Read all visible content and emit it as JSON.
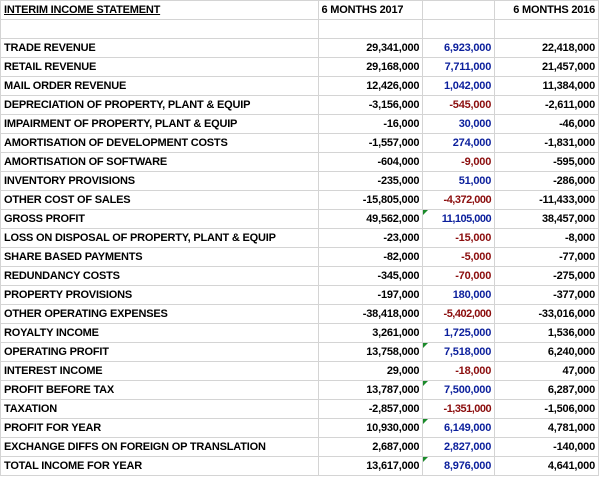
{
  "header": {
    "title": "INTERIM INCOME STATEMENT",
    "col_2017": "6 MONTHS 2017",
    "col_2016": "6 MONTHS 2016"
  },
  "rows": [
    {
      "label": "TRADE REVENUE",
      "v2017": "29,341,000",
      "change": "6,923,000",
      "change_sign": "pos",
      "v2016": "22,418,000"
    },
    {
      "label": "RETAIL REVENUE",
      "v2017": "29,168,000",
      "change": "7,711,000",
      "change_sign": "pos",
      "v2016": "21,457,000"
    },
    {
      "label": "MAIL ORDER REVENUE",
      "v2017": "12,426,000",
      "change": "1,042,000",
      "change_sign": "pos",
      "v2016": "11,384,000"
    },
    {
      "label": "DEPRECIATION OF PROPERTY, PLANT & EQUIP",
      "v2017": "-3,156,000",
      "change": "-545,000",
      "change_sign": "neg",
      "v2016": "-2,611,000"
    },
    {
      "label": "IMPAIRMENT OF PROPERTY, PLANT & EQUIP",
      "v2017": "-16,000",
      "change": "30,000",
      "change_sign": "pos",
      "v2016": "-46,000"
    },
    {
      "label": "AMORTISATION OF DEVELOPMENT COSTS",
      "v2017": "-1,557,000",
      "change": "274,000",
      "change_sign": "pos",
      "v2016": "-1,831,000"
    },
    {
      "label": "AMORTISATION OF SOFTWARE",
      "v2017": "-604,000",
      "change": "-9,000",
      "change_sign": "neg",
      "v2016": "-595,000"
    },
    {
      "label": "INVENTORY PROVISIONS",
      "v2017": "-235,000",
      "change": "51,000",
      "change_sign": "pos",
      "v2016": "-286,000"
    },
    {
      "label": "OTHER COST OF SALES",
      "v2017": "-15,805,000",
      "change": "-4,372,000",
      "change_sign": "neg",
      "v2016": "-11,433,000"
    },
    {
      "label": "GROSS PROFIT",
      "v2017": "49,562,000",
      "change": "11,105,000",
      "change_sign": "pos",
      "v2016": "38,457,000",
      "flag": true
    },
    {
      "label": "LOSS ON DISPOSAL OF PROPERTY, PLANT & EQUIP",
      "v2017": "-23,000",
      "change": "-15,000",
      "change_sign": "neg",
      "v2016": "-8,000"
    },
    {
      "label": "SHARE BASED PAYMENTS",
      "v2017": "-82,000",
      "change": "-5,000",
      "change_sign": "neg",
      "v2016": "-77,000"
    },
    {
      "label": "REDUNDANCY COSTS",
      "v2017": "-345,000",
      "change": "-70,000",
      "change_sign": "neg",
      "v2016": "-275,000"
    },
    {
      "label": "PROPERTY PROVISIONS",
      "v2017": "-197,000",
      "change": "180,000",
      "change_sign": "pos",
      "v2016": "-377,000"
    },
    {
      "label": "OTHER OPERATING EXPENSES",
      "v2017": "-38,418,000",
      "change": "-5,402,000",
      "change_sign": "neg",
      "v2016": "-33,016,000"
    },
    {
      "label": "ROYALTY INCOME",
      "v2017": "3,261,000",
      "change": "1,725,000",
      "change_sign": "pos",
      "v2016": "1,536,000"
    },
    {
      "label": "OPERATING PROFIT",
      "v2017": "13,758,000",
      "change": "7,518,000",
      "change_sign": "pos",
      "v2016": "6,240,000",
      "flag": true
    },
    {
      "label": "INTEREST INCOME",
      "v2017": "29,000",
      "change": "-18,000",
      "change_sign": "neg",
      "v2016": "47,000"
    },
    {
      "label": "PROFIT BEFORE TAX",
      "v2017": "13,787,000",
      "change": "7,500,000",
      "change_sign": "pos",
      "v2016": "6,287,000",
      "flag": true
    },
    {
      "label": "TAXATION",
      "v2017": "-2,857,000",
      "change": "-1,351,000",
      "change_sign": "neg",
      "v2016": "-1,506,000"
    },
    {
      "label": "PROFIT FOR YEAR",
      "v2017": "10,930,000",
      "change": "6,149,000",
      "change_sign": "pos",
      "v2016": "4,781,000",
      "flag": true
    },
    {
      "label": "EXCHANGE DIFFS ON FOREIGN OP TRANSLATION",
      "v2017": "2,687,000",
      "change": "2,827,000",
      "change_sign": "pos",
      "v2016": "-140,000"
    },
    {
      "label": "TOTAL INCOME FOR YEAR",
      "v2017": "13,617,000",
      "change": "8,976,000",
      "change_sign": "pos",
      "v2016": "4,641,000",
      "flag": true
    }
  ],
  "colors": {
    "positive_change": "#0b1f9c",
    "negative_change": "#8b0d0d",
    "gridline": "#d4d4d4",
    "cell_flag": "#1a8a2a"
  }
}
